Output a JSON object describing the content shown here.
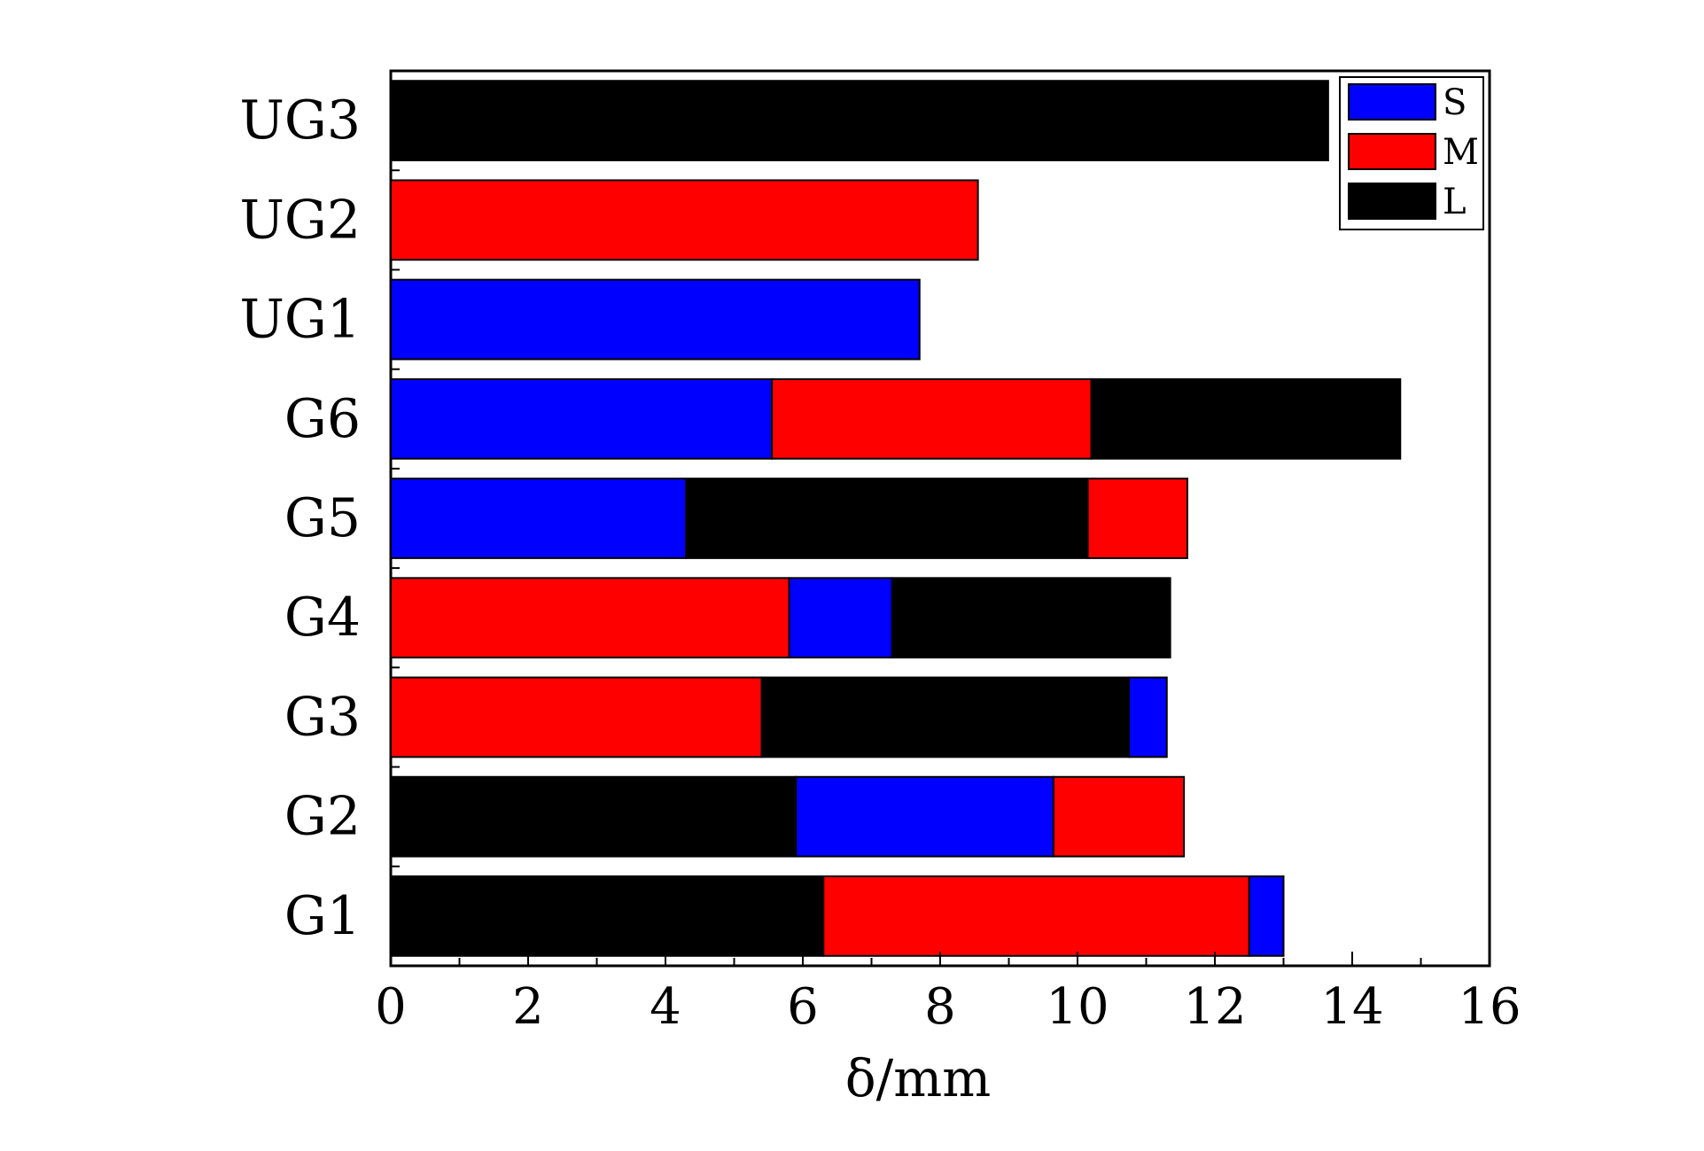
{
  "chart_data": {
    "type": "bar",
    "orientation": "horizontal",
    "stacked": true,
    "categories": [
      "G1",
      "G2",
      "G3",
      "G4",
      "G5",
      "G6",
      "UG1",
      "UG2",
      "UG3"
    ],
    "segment_order_left_to_right": [
      [
        "L",
        "M",
        "S"
      ],
      [
        "L",
        "S",
        "M"
      ],
      [
        "M",
        "L",
        "S"
      ],
      [
        "M",
        "S",
        "L"
      ],
      [
        "S",
        "L",
        "M"
      ],
      [
        "S",
        "M",
        "L"
      ],
      [
        "S"
      ],
      [
        "M"
      ],
      [
        "L"
      ]
    ],
    "series": [
      {
        "name": "S",
        "color": "#0000ff",
        "values": [
          0.5,
          3.75,
          0.55,
          1.5,
          4.3,
          5.55,
          7.7,
          0,
          0
        ]
      },
      {
        "name": "M",
        "color": "#ff0000",
        "values": [
          6.2,
          1.9,
          5.4,
          5.8,
          1.45,
          4.65,
          0,
          8.55,
          0
        ]
      },
      {
        "name": "L",
        "color": "#000000",
        "values": [
          6.3,
          5.9,
          5.35,
          4.05,
          5.85,
          4.5,
          0,
          0,
          13.65
        ]
      }
    ],
    "xlabel": "δ/mm",
    "ylabel": "",
    "xlim": [
      0,
      16
    ],
    "x_ticks": [
      "0",
      "2",
      "4",
      "6",
      "8",
      "10",
      "12",
      "14",
      "16"
    ],
    "grid": false,
    "legend_position": "top-right"
  }
}
